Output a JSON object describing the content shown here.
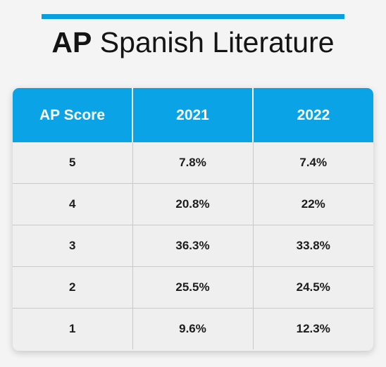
{
  "title": {
    "bold": "AP",
    "rest": "Spanish Literature"
  },
  "colors": {
    "accent": "#079fe0",
    "header_bg": "#0aa3e6",
    "body_bg": "#efefef"
  },
  "chart_data": {
    "type": "table",
    "title": "AP Spanish Literature",
    "columns": [
      "AP Score",
      "2021",
      "2022"
    ],
    "rows": [
      [
        "5",
        "7.8%",
        "7.4%"
      ],
      [
        "4",
        "20.8%",
        "22%"
      ],
      [
        "3",
        "36.3%",
        "33.8%"
      ],
      [
        "2",
        "25.5%",
        "24.5%"
      ],
      [
        "1",
        "9.6%",
        "12.3%"
      ]
    ]
  }
}
